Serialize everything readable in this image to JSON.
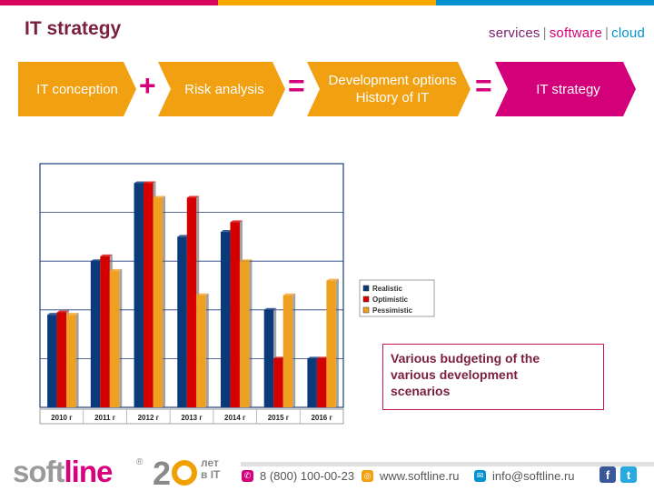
{
  "header": {
    "title": "IT strategy",
    "tagline": {
      "services": "services",
      "software": "software",
      "cloud": "cloud",
      "separator": "|"
    }
  },
  "colors": {
    "bar_pink": "#d9005b",
    "bar_orange": "#f7a800",
    "bar_blue": "#0093d0",
    "flow_orange": "#f0a010",
    "flow_magenta": "#d4007a",
    "realistic": "#0b3a7a",
    "optimistic": "#d40000",
    "pessimistic": "#f0a020"
  },
  "flow": {
    "steps": [
      {
        "label": "IT conception"
      },
      {
        "label": "Risk analysis"
      },
      {
        "label_line1": "Development options",
        "label_line2": "History of IT"
      },
      {
        "label": "IT strategy"
      }
    ],
    "operators": [
      "+",
      "=",
      "="
    ]
  },
  "chart_data": {
    "type": "bar",
    "title": "",
    "xlabel": "",
    "ylabel": "",
    "categories": [
      "2010 г",
      "2011 г",
      "2012 г",
      "2013 г",
      "2014 г",
      "2015 г",
      "2016 г"
    ],
    "series": [
      {
        "name": "Realistic",
        "color": "#0b3a7a",
        "values": [
          1.9,
          3.0,
          4.6,
          3.5,
          3.6,
          2.0,
          1.0
        ]
      },
      {
        "name": "Optimistic",
        "color": "#d40000",
        "values": [
          1.95,
          3.1,
          4.6,
          4.3,
          3.8,
          1.0,
          1.0
        ]
      },
      {
        "name": "Pessimistic",
        "color": "#f0a020",
        "values": [
          1.9,
          2.8,
          4.3,
          2.3,
          3.0,
          2.3,
          2.6
        ]
      }
    ],
    "ylim": [
      0,
      5
    ],
    "grid": true,
    "legend": "right"
  },
  "note": {
    "line1": "Various budgeting of the",
    "line2": "various development",
    "line3": "scenarios"
  },
  "footer": {
    "logo_soft": "soft",
    "logo_line": "line",
    "logo_reg": "®",
    "anniv_number": "2",
    "anniv_line1": "лет",
    "anniv_line2": "в IT",
    "phone": "8 (800) 100-00-23",
    "website": "www.softline.ru",
    "email": "info@softline.ru",
    "facebook": "f",
    "twitter": "t"
  }
}
